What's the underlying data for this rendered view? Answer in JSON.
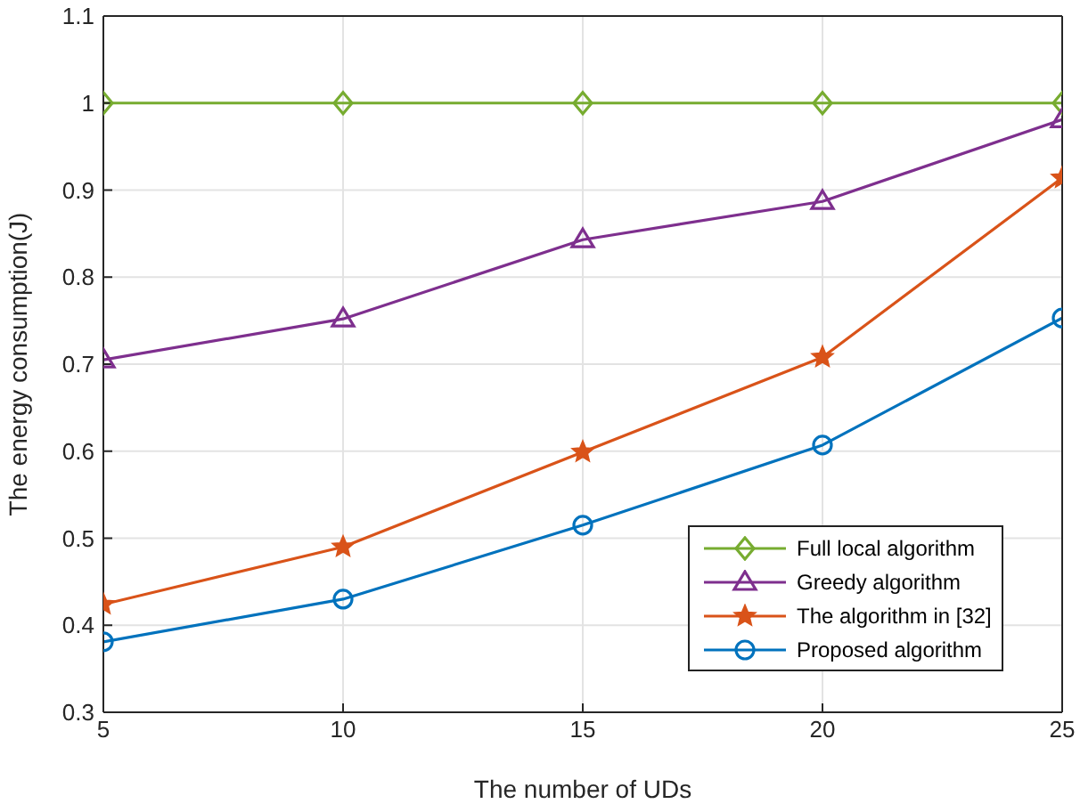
{
  "chart_data": {
    "type": "line",
    "xlabel": "The number of UDs",
    "ylabel": "The energy consumption(J)",
    "x": [
      5,
      10,
      15,
      20,
      25
    ],
    "xlim": [
      5,
      25
    ],
    "xticks": [
      5,
      10,
      15,
      20,
      25
    ],
    "ylim": [
      0.3,
      1.1
    ],
    "yticks": [
      0.3,
      0.4,
      0.5,
      0.6,
      0.7,
      0.8,
      0.9,
      1,
      1.1
    ],
    "grid": true,
    "legend": "bottom right",
    "series": [
      {
        "name": "Full local algorithm",
        "color": "#77ac30",
        "marker": "diamond",
        "values": [
          1,
          1,
          1,
          1,
          1
        ]
      },
      {
        "name": "Greedy algorithm",
        "color": "#7e2f8e",
        "marker": "triangle",
        "values": [
          0.705,
          0.752,
          0.843,
          0.887,
          0.981
        ]
      },
      {
        "name": "The algorithm in [32]",
        "color": "#d95319",
        "marker": "star",
        "values": [
          0.424,
          0.49,
          0.599,
          0.708,
          0.914
        ]
      },
      {
        "name": "Proposed algorithm",
        "color": "#0072bd",
        "marker": "circle",
        "values": [
          0.381,
          0.43,
          0.515,
          0.607,
          0.753
        ]
      }
    ]
  }
}
